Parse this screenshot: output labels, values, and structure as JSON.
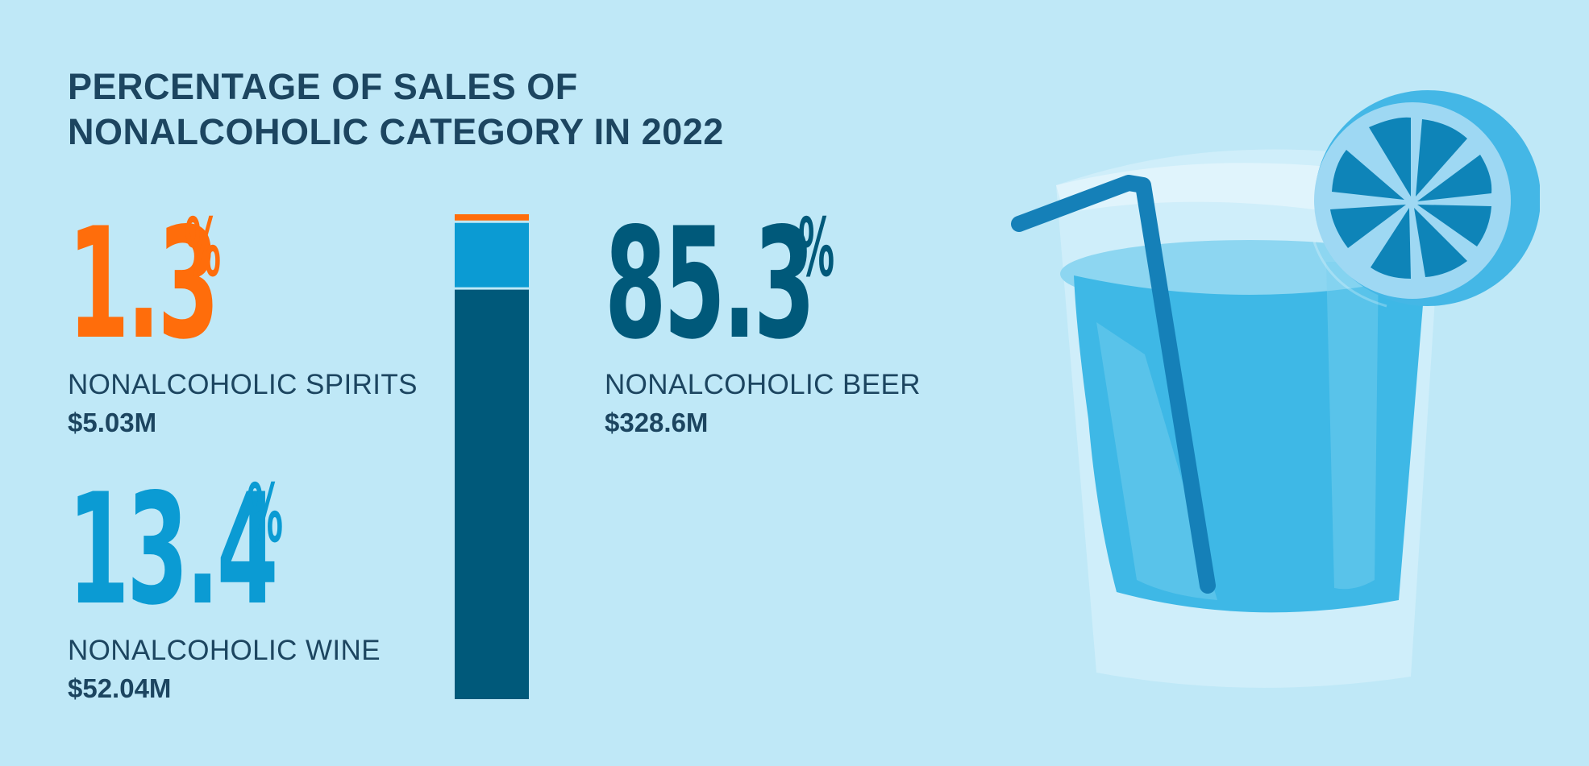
{
  "title": {
    "line1": "PERCENTAGE OF SALES OF",
    "line2": "NONALCOHOLIC CATEGORY IN 2022"
  },
  "chart_data": {
    "type": "bar",
    "stacked": true,
    "categories": [
      "NONALCOHOLIC SPIRITS",
      "NONALCOHOLIC WINE",
      "NONALCOHOLIC BEER"
    ],
    "values": [
      1.3,
      13.4,
      85.3
    ],
    "amounts": [
      "$5.03M",
      "$52.04M",
      "$328.6M"
    ],
    "colors": [
      "#ff6d0b",
      "#0b9bd3",
      "#00597a"
    ],
    "unit": "%"
  },
  "stats": [
    {
      "value": "1.3",
      "unit": "%",
      "label": "NONALCOHOLIC SPIRITS",
      "amount": "$5.03M",
      "color": "#ff6d0b"
    },
    {
      "value": "13.4",
      "unit": "%",
      "label": "NONALCOHOLIC WINE",
      "amount": "$52.04M",
      "color": "#0b9bd3"
    },
    {
      "value": "85.3",
      "unit": "%",
      "label": "NONALCOHOLIC BEER",
      "amount": "$328.6M",
      "color": "#00597a"
    }
  ],
  "illustration": {
    "icon": "glass-of-water-with-lemon-and-straw-icon"
  }
}
